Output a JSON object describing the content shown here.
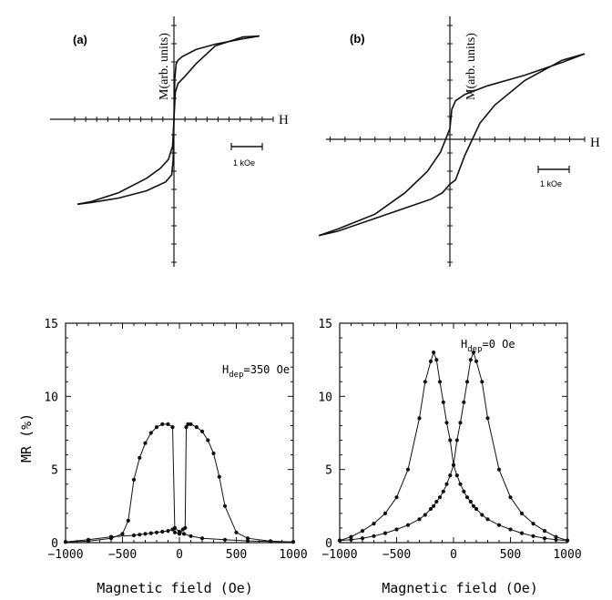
{
  "chart_data": [
    {
      "type": "line",
      "panel_label": "(a)",
      "xlabel": "H",
      "ylabel": "M(arb. units)",
      "scale_bar_label": "1 kOe",
      "xlim": [
        -3.5,
        3.6
      ],
      "ylim": [
        -1.0,
        1.0
      ],
      "series": [
        {
          "x": [
            -3.5,
            -3.0,
            -2.0,
            -1.0,
            -0.5,
            -0.2,
            -0.05,
            0.0,
            0.03,
            0.08,
            0.15,
            0.3,
            0.8,
            1.5,
            2.5,
            3.1
          ],
          "y": [
            -0.95,
            -0.92,
            -0.82,
            -0.66,
            -0.55,
            -0.45,
            -0.3,
            0.0,
            0.45,
            0.62,
            0.66,
            0.7,
            0.78,
            0.84,
            0.9,
            0.93
          ]
        },
        {
          "x": [
            3.1,
            2.5,
            1.5,
            0.8,
            0.4,
            0.15,
            0.05,
            0.0,
            -0.03,
            -0.08,
            -0.3,
            -1.0,
            -2.0,
            -3.0,
            -3.5
          ],
          "y": [
            0.93,
            0.92,
            0.82,
            0.62,
            0.48,
            0.4,
            0.3,
            0.0,
            -0.45,
            -0.62,
            -0.7,
            -0.8,
            -0.88,
            -0.93,
            -0.95
          ]
        }
      ]
    },
    {
      "type": "line",
      "panel_label": "(b)",
      "xlabel": "H",
      "ylabel": "M(arb. units)",
      "scale_bar_label": "1 kOe",
      "xlim": [
        -3.5,
        3.6
      ],
      "ylim": [
        -1.0,
        1.0
      ],
      "series": [
        {
          "x": [
            -3.5,
            -3.0,
            -2.0,
            -1.2,
            -0.6,
            -0.25,
            0.0,
            0.05,
            0.15,
            0.4,
            1.0,
            2.0,
            3.0,
            3.6
          ],
          "y": [
            -0.9,
            -0.84,
            -0.7,
            -0.5,
            -0.3,
            -0.12,
            0.1,
            0.28,
            0.36,
            0.42,
            0.5,
            0.6,
            0.72,
            0.8
          ]
        },
        {
          "x": [
            3.6,
            3.0,
            2.0,
            1.2,
            0.8,
            0.4,
            0.15,
            0.0,
            -0.2,
            -0.5,
            -1.0,
            -2.0,
            -3.0,
            -3.5
          ],
          "y": [
            0.8,
            0.74,
            0.55,
            0.32,
            0.15,
            -0.15,
            -0.38,
            -0.42,
            -0.5,
            -0.56,
            -0.62,
            -0.74,
            -0.86,
            -0.9
          ]
        }
      ]
    },
    {
      "type": "line",
      "annotation": "H",
      "annotation_sub": "dep",
      "annotation_value": "=350 Oe",
      "xlabel": "Magnetic field (Oe)",
      "ylabel": "MR (%)",
      "xlim": [
        -1000,
        1000
      ],
      "ylim": [
        0,
        15
      ],
      "xticks": [
        -1000,
        -500,
        0,
        500,
        1000
      ],
      "yticks": [
        0,
        5,
        10,
        15
      ],
      "series": [
        {
          "x": [
            -1000,
            -800,
            -600,
            -400,
            -350,
            -300,
            -250,
            -200,
            -150,
            -100,
            -60,
            -40,
            0,
            40,
            100,
            200,
            400,
            600,
            800,
            1000
          ],
          "y": [
            0.05,
            0.2,
            0.4,
            0.5,
            0.55,
            0.6,
            0.65,
            0.7,
            0.75,
            0.8,
            0.9,
            1.0,
            0.75,
            0.6,
            0.45,
            0.3,
            0.2,
            0.12,
            0.08,
            0.05
          ]
        },
        {
          "x": [
            -1000,
            -800,
            -600,
            -500,
            -450,
            -400,
            -350,
            -300,
            -250,
            -200,
            -150,
            -100,
            -60,
            -40,
            0,
            30,
            50,
            60,
            75,
            100,
            150,
            200,
            250,
            300,
            350,
            400,
            500,
            600,
            800,
            1000
          ],
          "y": [
            0.05,
            0.1,
            0.3,
            0.6,
            1.5,
            4.3,
            5.8,
            6.8,
            7.5,
            7.9,
            8.1,
            8.1,
            7.9,
            0.7,
            0.6,
            0.9,
            1.0,
            7.9,
            8.1,
            8.1,
            7.9,
            7.6,
            7.0,
            6.1,
            4.5,
            2.5,
            0.7,
            0.3,
            0.1,
            0.05
          ]
        }
      ]
    },
    {
      "type": "line",
      "annotation": "H",
      "annotation_sub": "dep",
      "annotation_value": "=0 Oe",
      "xlabel": "Magnetic field (Oe)",
      "ylabel": "",
      "xlim": [
        -1000,
        1000
      ],
      "ylim": [
        0,
        15
      ],
      "xticks": [
        -1000,
        -500,
        0,
        500,
        1000
      ],
      "yticks": [
        0,
        5,
        10,
        15
      ],
      "series": [
        {
          "x": [
            -1000,
            -900,
            -800,
            -700,
            -600,
            -500,
            -400,
            -300,
            -250,
            -200,
            -175,
            -150,
            -120,
            -90,
            -60,
            -30,
            0,
            30,
            60,
            90,
            120,
            150,
            175,
            200,
            250,
            300,
            400,
            500,
            600,
            700,
            800,
            900,
            1000
          ],
          "y": [
            0.15,
            0.4,
            0.8,
            1.3,
            2.0,
            3.1,
            5.0,
            8.5,
            11.0,
            12.4,
            13.0,
            12.5,
            11.0,
            9.6,
            8.2,
            7.0,
            5.3,
            4.6,
            4.0,
            3.5,
            3.1,
            2.8,
            2.5,
            2.3,
            1.9,
            1.6,
            1.2,
            0.9,
            0.65,
            0.45,
            0.3,
            0.2,
            0.15
          ]
        },
        {
          "x": [
            -1000,
            -900,
            -800,
            -700,
            -600,
            -500,
            -400,
            -300,
            -250,
            -200,
            -175,
            -150,
            -120,
            -90,
            -60,
            -30,
            0,
            30,
            60,
            90,
            120,
            150,
            175,
            200,
            250,
            300,
            400,
            500,
            600,
            700,
            800,
            900,
            1000
          ],
          "y": [
            0.15,
            0.2,
            0.3,
            0.45,
            0.65,
            0.9,
            1.2,
            1.6,
            1.9,
            2.3,
            2.5,
            2.8,
            3.1,
            3.5,
            4.0,
            4.6,
            5.3,
            7.0,
            8.2,
            9.6,
            11.0,
            12.5,
            13.0,
            12.4,
            11.0,
            8.5,
            5.0,
            3.1,
            2.0,
            1.3,
            0.8,
            0.4,
            0.15
          ]
        }
      ]
    }
  ]
}
